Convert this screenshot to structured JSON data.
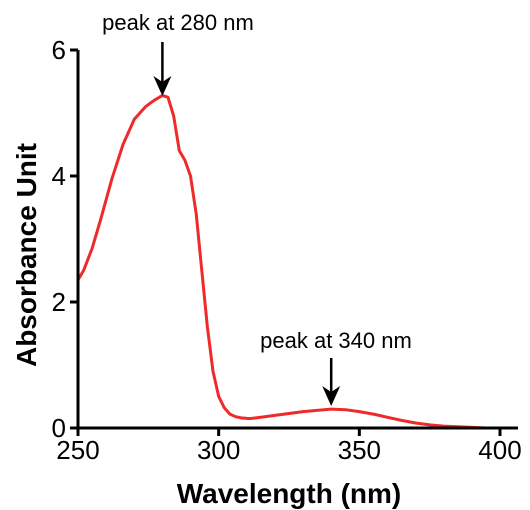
{
  "chart_data": {
    "type": "line",
    "title": "",
    "xlabel": "Wavelength (nm)",
    "ylabel": "Absorbance Unit",
    "xlim": [
      250,
      400
    ],
    "ylim": [
      0,
      6
    ],
    "x_ticks": [
      250,
      300,
      350,
      400
    ],
    "y_ticks": [
      0,
      2,
      4,
      6
    ],
    "grid": false,
    "legend": "none",
    "series": [
      {
        "color": "#ee2a2a",
        "x": [
          250,
          252,
          255,
          258,
          262,
          266,
          270,
          274,
          277,
          280,
          282,
          284,
          286,
          288,
          290,
          292,
          294,
          296,
          298,
          300,
          302,
          304,
          306,
          308,
          311,
          315,
          320,
          325,
          330,
          335,
          340,
          345,
          350,
          355,
          360,
          365,
          370,
          375,
          380,
          385,
          390,
          395,
          400
        ],
        "y": [
          2.35,
          2.5,
          2.85,
          3.3,
          3.95,
          4.5,
          4.9,
          5.1,
          5.2,
          5.28,
          5.25,
          4.95,
          4.4,
          4.25,
          4.0,
          3.4,
          2.5,
          1.6,
          0.9,
          0.5,
          0.32,
          0.22,
          0.18,
          0.16,
          0.15,
          0.17,
          0.2,
          0.23,
          0.26,
          0.28,
          0.3,
          0.29,
          0.26,
          0.22,
          0.17,
          0.12,
          0.08,
          0.05,
          0.03,
          0.02,
          0.01,
          0.0,
          0.0
        ]
      }
    ],
    "annotations": [
      {
        "text": "peak at 280 nm",
        "x": 280,
        "y": 5.28
      },
      {
        "text": "peak at 340 nm",
        "x": 340,
        "y": 0.3
      }
    ]
  }
}
